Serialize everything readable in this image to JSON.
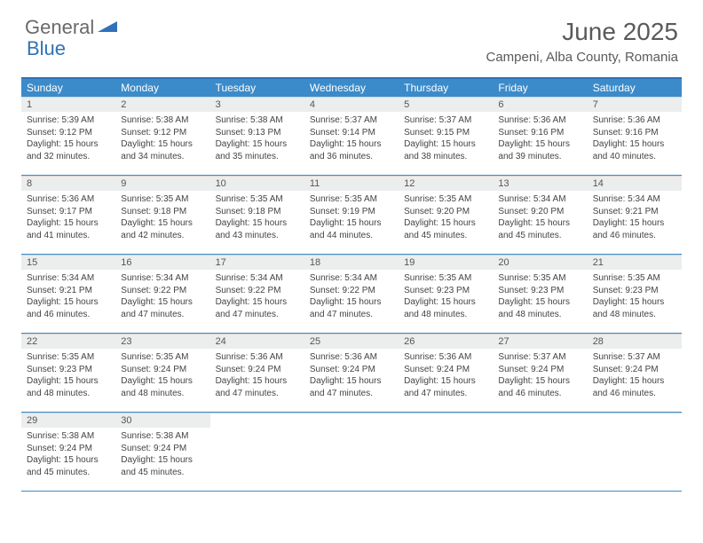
{
  "logo": {
    "text1": "General",
    "text2": "Blue"
  },
  "title": "June 2025",
  "location": "Campeni, Alba County, Romania",
  "colors": {
    "header_bar": "#3b8bca",
    "accent_line": "#2f72b8",
    "daynum_bg": "#eceded",
    "text": "#444444",
    "title_text": "#5a5a5a"
  },
  "day_headers": [
    "Sunday",
    "Monday",
    "Tuesday",
    "Wednesday",
    "Thursday",
    "Friday",
    "Saturday"
  ],
  "weeks": [
    [
      {
        "n": "1",
        "sunrise": "Sunrise: 5:39 AM",
        "sunset": "Sunset: 9:12 PM",
        "daylight": "Daylight: 15 hours and 32 minutes."
      },
      {
        "n": "2",
        "sunrise": "Sunrise: 5:38 AM",
        "sunset": "Sunset: 9:12 PM",
        "daylight": "Daylight: 15 hours and 34 minutes."
      },
      {
        "n": "3",
        "sunrise": "Sunrise: 5:38 AM",
        "sunset": "Sunset: 9:13 PM",
        "daylight": "Daylight: 15 hours and 35 minutes."
      },
      {
        "n": "4",
        "sunrise": "Sunrise: 5:37 AM",
        "sunset": "Sunset: 9:14 PM",
        "daylight": "Daylight: 15 hours and 36 minutes."
      },
      {
        "n": "5",
        "sunrise": "Sunrise: 5:37 AM",
        "sunset": "Sunset: 9:15 PM",
        "daylight": "Daylight: 15 hours and 38 minutes."
      },
      {
        "n": "6",
        "sunrise": "Sunrise: 5:36 AM",
        "sunset": "Sunset: 9:16 PM",
        "daylight": "Daylight: 15 hours and 39 minutes."
      },
      {
        "n": "7",
        "sunrise": "Sunrise: 5:36 AM",
        "sunset": "Sunset: 9:16 PM",
        "daylight": "Daylight: 15 hours and 40 minutes."
      }
    ],
    [
      {
        "n": "8",
        "sunrise": "Sunrise: 5:36 AM",
        "sunset": "Sunset: 9:17 PM",
        "daylight": "Daylight: 15 hours and 41 minutes."
      },
      {
        "n": "9",
        "sunrise": "Sunrise: 5:35 AM",
        "sunset": "Sunset: 9:18 PM",
        "daylight": "Daylight: 15 hours and 42 minutes."
      },
      {
        "n": "10",
        "sunrise": "Sunrise: 5:35 AM",
        "sunset": "Sunset: 9:18 PM",
        "daylight": "Daylight: 15 hours and 43 minutes."
      },
      {
        "n": "11",
        "sunrise": "Sunrise: 5:35 AM",
        "sunset": "Sunset: 9:19 PM",
        "daylight": "Daylight: 15 hours and 44 minutes."
      },
      {
        "n": "12",
        "sunrise": "Sunrise: 5:35 AM",
        "sunset": "Sunset: 9:20 PM",
        "daylight": "Daylight: 15 hours and 45 minutes."
      },
      {
        "n": "13",
        "sunrise": "Sunrise: 5:34 AM",
        "sunset": "Sunset: 9:20 PM",
        "daylight": "Daylight: 15 hours and 45 minutes."
      },
      {
        "n": "14",
        "sunrise": "Sunrise: 5:34 AM",
        "sunset": "Sunset: 9:21 PM",
        "daylight": "Daylight: 15 hours and 46 minutes."
      }
    ],
    [
      {
        "n": "15",
        "sunrise": "Sunrise: 5:34 AM",
        "sunset": "Sunset: 9:21 PM",
        "daylight": "Daylight: 15 hours and 46 minutes."
      },
      {
        "n": "16",
        "sunrise": "Sunrise: 5:34 AM",
        "sunset": "Sunset: 9:22 PM",
        "daylight": "Daylight: 15 hours and 47 minutes."
      },
      {
        "n": "17",
        "sunrise": "Sunrise: 5:34 AM",
        "sunset": "Sunset: 9:22 PM",
        "daylight": "Daylight: 15 hours and 47 minutes."
      },
      {
        "n": "18",
        "sunrise": "Sunrise: 5:34 AM",
        "sunset": "Sunset: 9:22 PM",
        "daylight": "Daylight: 15 hours and 47 minutes."
      },
      {
        "n": "19",
        "sunrise": "Sunrise: 5:35 AM",
        "sunset": "Sunset: 9:23 PM",
        "daylight": "Daylight: 15 hours and 48 minutes."
      },
      {
        "n": "20",
        "sunrise": "Sunrise: 5:35 AM",
        "sunset": "Sunset: 9:23 PM",
        "daylight": "Daylight: 15 hours and 48 minutes."
      },
      {
        "n": "21",
        "sunrise": "Sunrise: 5:35 AM",
        "sunset": "Sunset: 9:23 PM",
        "daylight": "Daylight: 15 hours and 48 minutes."
      }
    ],
    [
      {
        "n": "22",
        "sunrise": "Sunrise: 5:35 AM",
        "sunset": "Sunset: 9:23 PM",
        "daylight": "Daylight: 15 hours and 48 minutes."
      },
      {
        "n": "23",
        "sunrise": "Sunrise: 5:35 AM",
        "sunset": "Sunset: 9:24 PM",
        "daylight": "Daylight: 15 hours and 48 minutes."
      },
      {
        "n": "24",
        "sunrise": "Sunrise: 5:36 AM",
        "sunset": "Sunset: 9:24 PM",
        "daylight": "Daylight: 15 hours and 47 minutes."
      },
      {
        "n": "25",
        "sunrise": "Sunrise: 5:36 AM",
        "sunset": "Sunset: 9:24 PM",
        "daylight": "Daylight: 15 hours and 47 minutes."
      },
      {
        "n": "26",
        "sunrise": "Sunrise: 5:36 AM",
        "sunset": "Sunset: 9:24 PM",
        "daylight": "Daylight: 15 hours and 47 minutes."
      },
      {
        "n": "27",
        "sunrise": "Sunrise: 5:37 AM",
        "sunset": "Sunset: 9:24 PM",
        "daylight": "Daylight: 15 hours and 46 minutes."
      },
      {
        "n": "28",
        "sunrise": "Sunrise: 5:37 AM",
        "sunset": "Sunset: 9:24 PM",
        "daylight": "Daylight: 15 hours and 46 minutes."
      }
    ],
    [
      {
        "n": "29",
        "sunrise": "Sunrise: 5:38 AM",
        "sunset": "Sunset: 9:24 PM",
        "daylight": "Daylight: 15 hours and 45 minutes."
      },
      {
        "n": "30",
        "sunrise": "Sunrise: 5:38 AM",
        "sunset": "Sunset: 9:24 PM",
        "daylight": "Daylight: 15 hours and 45 minutes."
      },
      {
        "empty": true
      },
      {
        "empty": true
      },
      {
        "empty": true
      },
      {
        "empty": true
      },
      {
        "empty": true
      }
    ]
  ]
}
